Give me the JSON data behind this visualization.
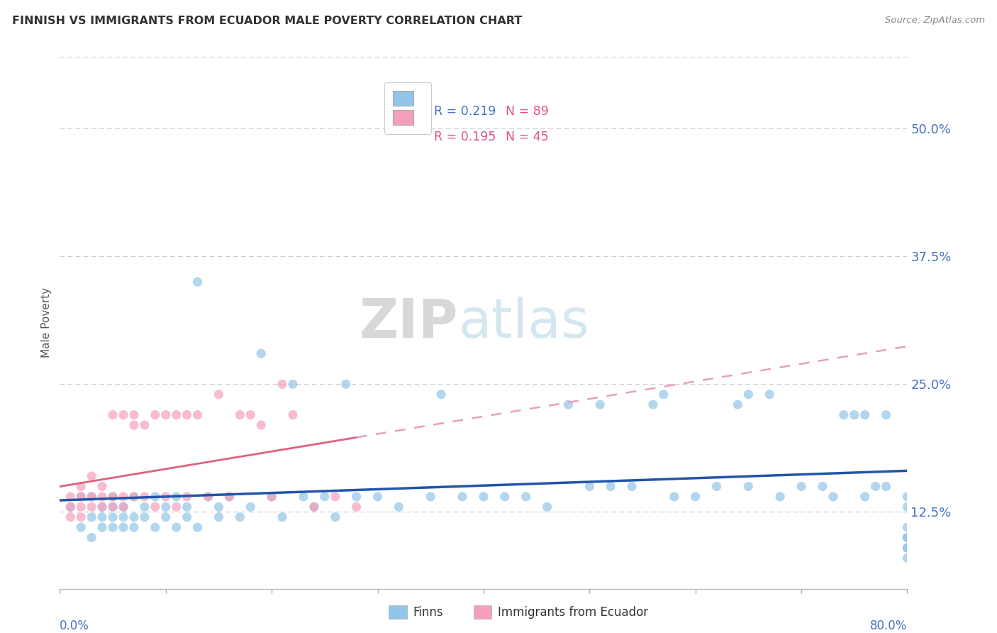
{
  "title": "FINNISH VS IMMIGRANTS FROM ECUADOR MALE POVERTY CORRELATION CHART",
  "source": "Source: ZipAtlas.com",
  "ylabel": "Male Poverty",
  "xlim": [
    0.0,
    80.0
  ],
  "ylim": [
    5.0,
    57.0
  ],
  "right_yticks": [
    12.5,
    25.0,
    37.5,
    50.0
  ],
  "right_ytick_labels": [
    "12.5%",
    "25.0%",
    "37.5%",
    "50.0%"
  ],
  "legend_r1": "R = 0.219",
  "legend_n1": "N = 89",
  "legend_r2": "R = 0.195",
  "legend_n2": "N = 45",
  "color_finns": "#92C5E8",
  "color_ecuador": "#F4A0BC",
  "color_finns_line": "#2255AA",
  "color_ecuador_solid": "#E06080",
  "color_ecuador_dash": "#E8A0BC",
  "watermark_zip": "ZIP",
  "watermark_atlas": "atlas",
  "finns_x": [
    1,
    2,
    2,
    3,
    3,
    3,
    4,
    4,
    4,
    5,
    5,
    5,
    5,
    6,
    6,
    6,
    7,
    7,
    7,
    8,
    8,
    9,
    9,
    10,
    10,
    11,
    11,
    12,
    12,
    13,
    13,
    14,
    15,
    15,
    16,
    17,
    18,
    19,
    20,
    21,
    22,
    23,
    24,
    25,
    26,
    27,
    28,
    30,
    32,
    35,
    36,
    38,
    40,
    42,
    44,
    46,
    48,
    50,
    51,
    52,
    54,
    56,
    57,
    58,
    60,
    62,
    64,
    65,
    65,
    67,
    68,
    70,
    72,
    73,
    74,
    75,
    76,
    76,
    77,
    78,
    78,
    80,
    80,
    80,
    80,
    80,
    80,
    80,
    80
  ],
  "finns_y": [
    13,
    11,
    14,
    12,
    14,
    10,
    13,
    11,
    12,
    14,
    12,
    11,
    13,
    12,
    13,
    11,
    12,
    14,
    11,
    12,
    13,
    11,
    14,
    12,
    13,
    11,
    14,
    12,
    13,
    11,
    35,
    14,
    12,
    13,
    14,
    12,
    13,
    28,
    14,
    12,
    25,
    14,
    13,
    14,
    12,
    25,
    14,
    14,
    13,
    14,
    24,
    14,
    14,
    14,
    14,
    13,
    23,
    15,
    23,
    15,
    15,
    23,
    24,
    14,
    14,
    15,
    23,
    15,
    24,
    24,
    14,
    15,
    15,
    14,
    22,
    22,
    14,
    22,
    15,
    22,
    15,
    14,
    13,
    10,
    9,
    11,
    10,
    9,
    8
  ],
  "ecuador_x": [
    1,
    1,
    1,
    2,
    2,
    2,
    2,
    3,
    3,
    3,
    4,
    4,
    4,
    5,
    5,
    5,
    6,
    6,
    6,
    7,
    7,
    7,
    8,
    8,
    9,
    9,
    10,
    10,
    11,
    11,
    12,
    12,
    13,
    14,
    15,
    16,
    17,
    18,
    19,
    20,
    21,
    22,
    24,
    26,
    28
  ],
  "ecuador_y": [
    14,
    13,
    12,
    15,
    14,
    13,
    12,
    14,
    13,
    16,
    15,
    14,
    13,
    22,
    14,
    13,
    22,
    14,
    13,
    22,
    21,
    14,
    21,
    14,
    22,
    13,
    22,
    14,
    22,
    13,
    14,
    22,
    22,
    14,
    24,
    14,
    22,
    22,
    21,
    14,
    25,
    22,
    13,
    14,
    13
  ]
}
